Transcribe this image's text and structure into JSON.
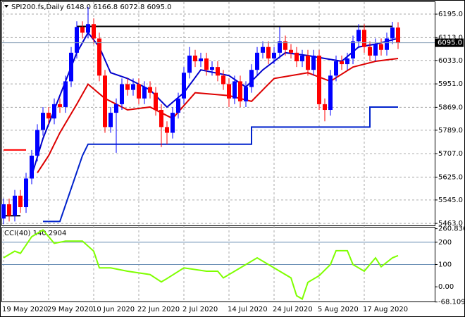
{
  "chart_data": [
    {
      "type": "candlestick",
      "title": "SPI200.fs,Daily  6148.0 6166.8 6072.8 6095.0",
      "categories": [
        "19 May 2020",
        null,
        null,
        null,
        null,
        null,
        null,
        null,
        "29 May 2020",
        null,
        null,
        null,
        null,
        null,
        null,
        null,
        "10 Jun 2020",
        null,
        null,
        null,
        null,
        null,
        null,
        null,
        "22 Jun 2020",
        null,
        null,
        null,
        null,
        null,
        null,
        null,
        "2 Jul 2020",
        null,
        null,
        null,
        null,
        null,
        null,
        null,
        "14 Jul 2020",
        null,
        null,
        null,
        null,
        null,
        null,
        null,
        "24 Jul 2020",
        null,
        null,
        null,
        null,
        null,
        null,
        null,
        "5 Aug 2020",
        null,
        null,
        null,
        null,
        null,
        null,
        null,
        "17 Aug 2020",
        null,
        null,
        null,
        null,
        null,
        null
      ],
      "open": [
        5480,
        5530,
        5490,
        5560,
        5520,
        5620,
        5700,
        5790,
        5850,
        5830,
        5880,
        5870,
        5960,
        6060,
        6150,
        6130,
        6160,
        6110,
        5980,
        5800,
        5850,
        5880,
        5950,
        5930,
        5950,
        5900,
        5940,
        5920,
        5860,
        5800,
        5780,
        5850,
        5900,
        5990,
        6050,
        6030,
        6040,
        6000,
        6010,
        5980,
        5950,
        5900,
        5960,
        5890,
        5940,
        6000,
        6060,
        6080,
        6040,
        6060,
        6100,
        6070,
        6060,
        6030,
        6050,
        6000,
        6050,
        5880,
        5860,
        5980,
        6030,
        6020,
        6040,
        6100,
        6140,
        6080,
        6050,
        6090,
        6070,
        6110,
        6148
      ],
      "high": [
        5550,
        5550,
        5580,
        5580,
        5640,
        5720,
        5810,
        5870,
        5870,
        5900,
        5900,
        5980,
        6080,
        6170,
        6170,
        6220,
        6180,
        6130,
        6000,
        5870,
        5900,
        5970,
        5970,
        5970,
        5970,
        5960,
        5960,
        5940,
        5880,
        5820,
        5870,
        5920,
        6010,
        6080,
        6070,
        6060,
        6060,
        6030,
        6030,
        6000,
        5970,
        5980,
        5980,
        5960,
        6020,
        6080,
        6100,
        6100,
        6080,
        6150,
        6120,
        6090,
        6080,
        6070,
        6070,
        6070,
        6070,
        5900,
        6000,
        6050,
        6050,
        6060,
        6120,
        6160,
        6160,
        6100,
        6110,
        6110,
        6130,
        6168,
        6166.8
      ],
      "low": [
        5460,
        5470,
        5470,
        5500,
        5500,
        5600,
        5680,
        5770,
        5810,
        5810,
        5850,
        5850,
        5940,
        6040,
        6110,
        6110,
        6090,
        5960,
        5780,
        5780,
        5710,
        5860,
        5910,
        5910,
        5880,
        5880,
        5900,
        5840,
        5730,
        5740,
        5760,
        5830,
        5880,
        5970,
        6010,
        6010,
        5980,
        5980,
        5960,
        5930,
        5870,
        5880,
        5870,
        5870,
        5920,
        5980,
        6040,
        6020,
        6020,
        6040,
        6050,
        6040,
        6010,
        6010,
        5980,
        5980,
        5860,
        5820,
        5840,
        5960,
        6000,
        6000,
        6020,
        6080,
        6060,
        6030,
        6030,
        6050,
        6050,
        6090,
        6072.8
      ],
      "close": [
        5530,
        5490,
        5560,
        5520,
        5620,
        5700,
        5790,
        5850,
        5830,
        5880,
        5870,
        5960,
        6060,
        6150,
        6130,
        6160,
        6110,
        5980,
        5800,
        5850,
        5880,
        5950,
        5930,
        5950,
        5900,
        5940,
        5920,
        5860,
        5800,
        5780,
        5850,
        5900,
        5990,
        6050,
        6030,
        6040,
        6000,
        6010,
        5980,
        5950,
        5900,
        5960,
        5890,
        5940,
        6000,
        6060,
        6080,
        6040,
        6060,
        6100,
        6070,
        6060,
        6030,
        6050,
        6000,
        6050,
        5880,
        5860,
        5980,
        6030,
        6020,
        6040,
        6100,
        6140,
        6080,
        6050,
        6090,
        6070,
        6110,
        6148,
        6095
      ],
      "up_color": "#0000ff",
      "down_color": "#ff0000",
      "series": [
        {
          "color": "#0000cc",
          "x": [
            5,
            7,
            9,
            11,
            13,
            15,
            17,
            19,
            22,
            26,
            29,
            32,
            35,
            40,
            43,
            46,
            50,
            54,
            57,
            60,
            63,
            66,
            70
          ],
          "values": [
            5630,
            5760,
            5860,
            5960,
            6060,
            6130,
            6080,
            5990,
            5970,
            5930,
            5870,
            5920,
            6000,
            5980,
            5940,
            6000,
            6060,
            6050,
            6040,
            6030,
            6080,
            6090,
            6110
          ]
        },
        {
          "color": "#dd0000",
          "x": [
            6,
            8,
            10,
            13,
            15,
            18,
            22,
            26,
            30,
            34,
            40,
            44,
            48,
            54,
            58,
            62,
            66,
            70
          ],
          "values": [
            5640,
            5700,
            5780,
            5880,
            5950,
            5900,
            5860,
            5870,
            5830,
            5920,
            5910,
            5890,
            5970,
            5990,
            5960,
            6010,
            6030,
            6040
          ]
        },
        {
          "color": "#0022cc",
          "x": [
            7,
            10,
            14,
            15,
            44,
            44,
            65,
            65,
            70
          ],
          "values": [
            5470,
            5470,
            5700,
            5740,
            5740,
            5800,
            5800,
            5870,
            5870
          ]
        },
        {
          "color": "#000000",
          "x": [
            13,
            69
          ],
          "values": [
            6152,
            6152
          ]
        },
        {
          "color": "#ff0000",
          "x": [
            0,
            4
          ],
          "values": [
            5720,
            5720
          ]
        },
        {
          "color": "#000000",
          "x": [
            0,
            3
          ],
          "values": [
            5490,
            5490
          ]
        }
      ],
      "last_price_label": "6095.0",
      "ylim": [
        5456,
        6237
      ],
      "yticks": [
        {
          "value": 6195,
          "label": "6195.0"
        },
        {
          "value": 6113,
          "label": "6113.0"
        },
        {
          "value": 6033,
          "label": "6033.0"
        },
        {
          "value": 5951,
          "label": "5951.0"
        },
        {
          "value": 5869,
          "label": "5869.0"
        },
        {
          "value": 5789,
          "label": "5789.0"
        },
        {
          "value": 5707,
          "label": "5707.0"
        },
        {
          "value": 5625,
          "label": "5625.0"
        },
        {
          "value": 5545,
          "label": "5545.0"
        },
        {
          "value": 5463,
          "label": "5463.0"
        }
      ],
      "grid": true
    },
    {
      "type": "line",
      "title": "CCI(40) 140.2904",
      "x": [
        0,
        2,
        3,
        5,
        7,
        9,
        11,
        14,
        16,
        17,
        19,
        22,
        26,
        28,
        29,
        32,
        36,
        38,
        39,
        42,
        45,
        47,
        49,
        51,
        52,
        53,
        54,
        56,
        58,
        59,
        61,
        62,
        64,
        66,
        67,
        69,
        70
      ],
      "values": [
        130,
        160,
        150,
        225,
        255,
        195,
        205,
        205,
        160,
        85,
        85,
        70,
        55,
        22,
        37,
        85,
        70,
        70,
        40,
        85,
        130,
        100,
        70,
        40,
        -40,
        -55,
        20,
        50,
        100,
        162,
        162,
        100,
        70,
        130,
        90,
        130,
        140
      ],
      "color": "#7fff00",
      "levels": [
        200,
        100
      ],
      "level_color": "#6b8fb5",
      "ylim": [
        -66,
        266
      ],
      "yticks": [
        {
          "value": 260.8362,
          "label": "260.8362"
        },
        200,
        100,
        {
          "value": 0,
          "label": "0.00"
        },
        {
          "value": -68.1098,
          "label": "-68.1098"
        }
      ]
    }
  ]
}
